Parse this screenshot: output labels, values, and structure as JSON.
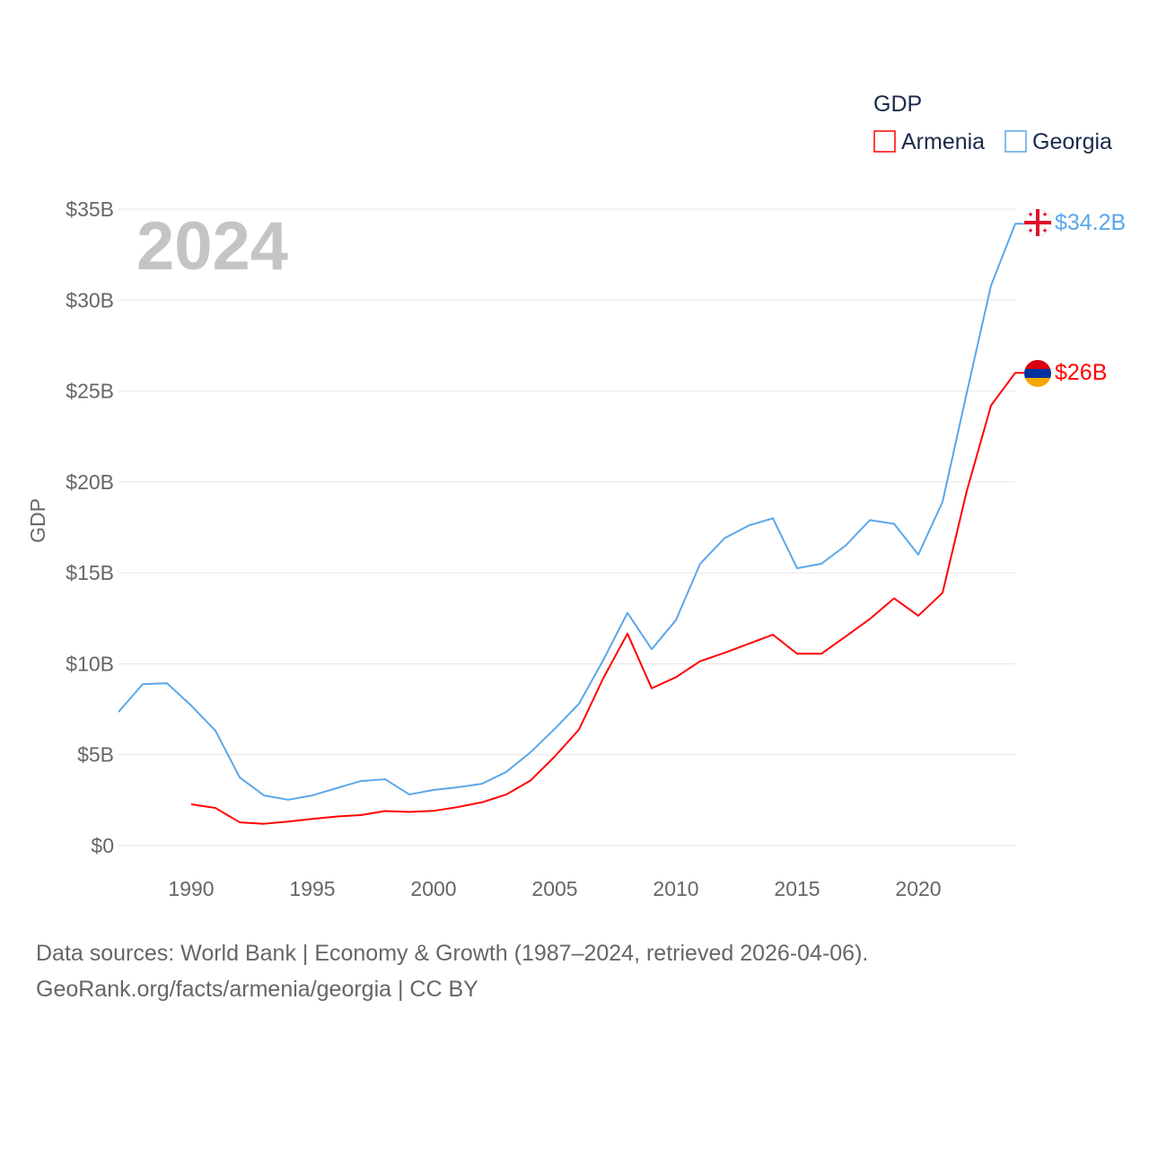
{
  "chart_data": {
    "type": "line",
    "title": "GDP",
    "ylabel": "GDP",
    "xlabel": "",
    "year_label": "2024",
    "ylim": [
      0,
      35
    ],
    "xlim": [
      1987,
      2024
    ],
    "grid": true,
    "legend_placement": "top-right",
    "y_ticks": [
      {
        "v": 0,
        "label": "$0"
      },
      {
        "v": 5,
        "label": "$5B"
      },
      {
        "v": 10,
        "label": "$10B"
      },
      {
        "v": 15,
        "label": "$15B"
      },
      {
        "v": 20,
        "label": "$20B"
      },
      {
        "v": 25,
        "label": "$25B"
      },
      {
        "v": 30,
        "label": "$30B"
      },
      {
        "v": 35,
        "label": "$35B"
      }
    ],
    "x_ticks": [
      "1990",
      "1995",
      "2000",
      "2005",
      "2010",
      "2015",
      "2020"
    ],
    "series": [
      {
        "name": "Armenia",
        "color": "#ff0000",
        "end_label": "$26B",
        "flag": "armenia-flag-icon",
        "x": [
          1990,
          1991,
          1992,
          1993,
          1994,
          1995,
          1996,
          1997,
          1998,
          1999,
          2000,
          2001,
          2002,
          2003,
          2004,
          2005,
          2006,
          2007,
          2008,
          2009,
          2010,
          2011,
          2012,
          2013,
          2014,
          2015,
          2016,
          2017,
          2018,
          2019,
          2020,
          2021,
          2022,
          2023,
          2024
        ],
        "values": [
          2.27,
          2.07,
          1.28,
          1.2,
          1.32,
          1.47,
          1.6,
          1.68,
          1.9,
          1.85,
          1.91,
          2.12,
          2.38,
          2.81,
          3.58,
          4.9,
          6.38,
          9.2,
          11.66,
          8.65,
          9.26,
          10.14,
          10.6,
          11.1,
          11.6,
          10.55,
          10.55,
          11.5,
          12.46,
          13.6,
          12.64,
          13.9,
          19.5,
          24.2,
          26.0
        ]
      },
      {
        "name": "Georgia",
        "color": "#5ba7ea",
        "end_label": "$34.2B",
        "flag": "georgia-flag-icon",
        "x": [
          1987,
          1988,
          1989,
          1990,
          1991,
          1992,
          1993,
          1994,
          1995,
          1996,
          1997,
          1998,
          1999,
          2000,
          2001,
          2002,
          2003,
          2004,
          2005,
          2006,
          2007,
          2008,
          2009,
          2010,
          2011,
          2012,
          2013,
          2014,
          2015,
          2016,
          2017,
          2018,
          2019,
          2020,
          2021,
          2022,
          2023,
          2024
        ],
        "values": [
          7.35,
          8.88,
          8.93,
          7.7,
          6.32,
          3.75,
          2.76,
          2.52,
          2.76,
          3.16,
          3.55,
          3.65,
          2.81,
          3.06,
          3.21,
          3.4,
          4.05,
          5.13,
          6.42,
          7.8,
          10.2,
          12.8,
          10.8,
          12.4,
          15.5,
          16.9,
          17.6,
          18.0,
          15.25,
          15.5,
          16.5,
          17.9,
          17.7,
          16.0,
          18.9,
          24.9,
          30.8,
          34.2
        ]
      }
    ]
  },
  "footer": {
    "line1": "Data sources: World Bank | Economy & Growth (1987–2024, retrieved 2026-04-06).",
    "line2": "GeoRank.org/facts/armenia/georgia | CC BY"
  }
}
